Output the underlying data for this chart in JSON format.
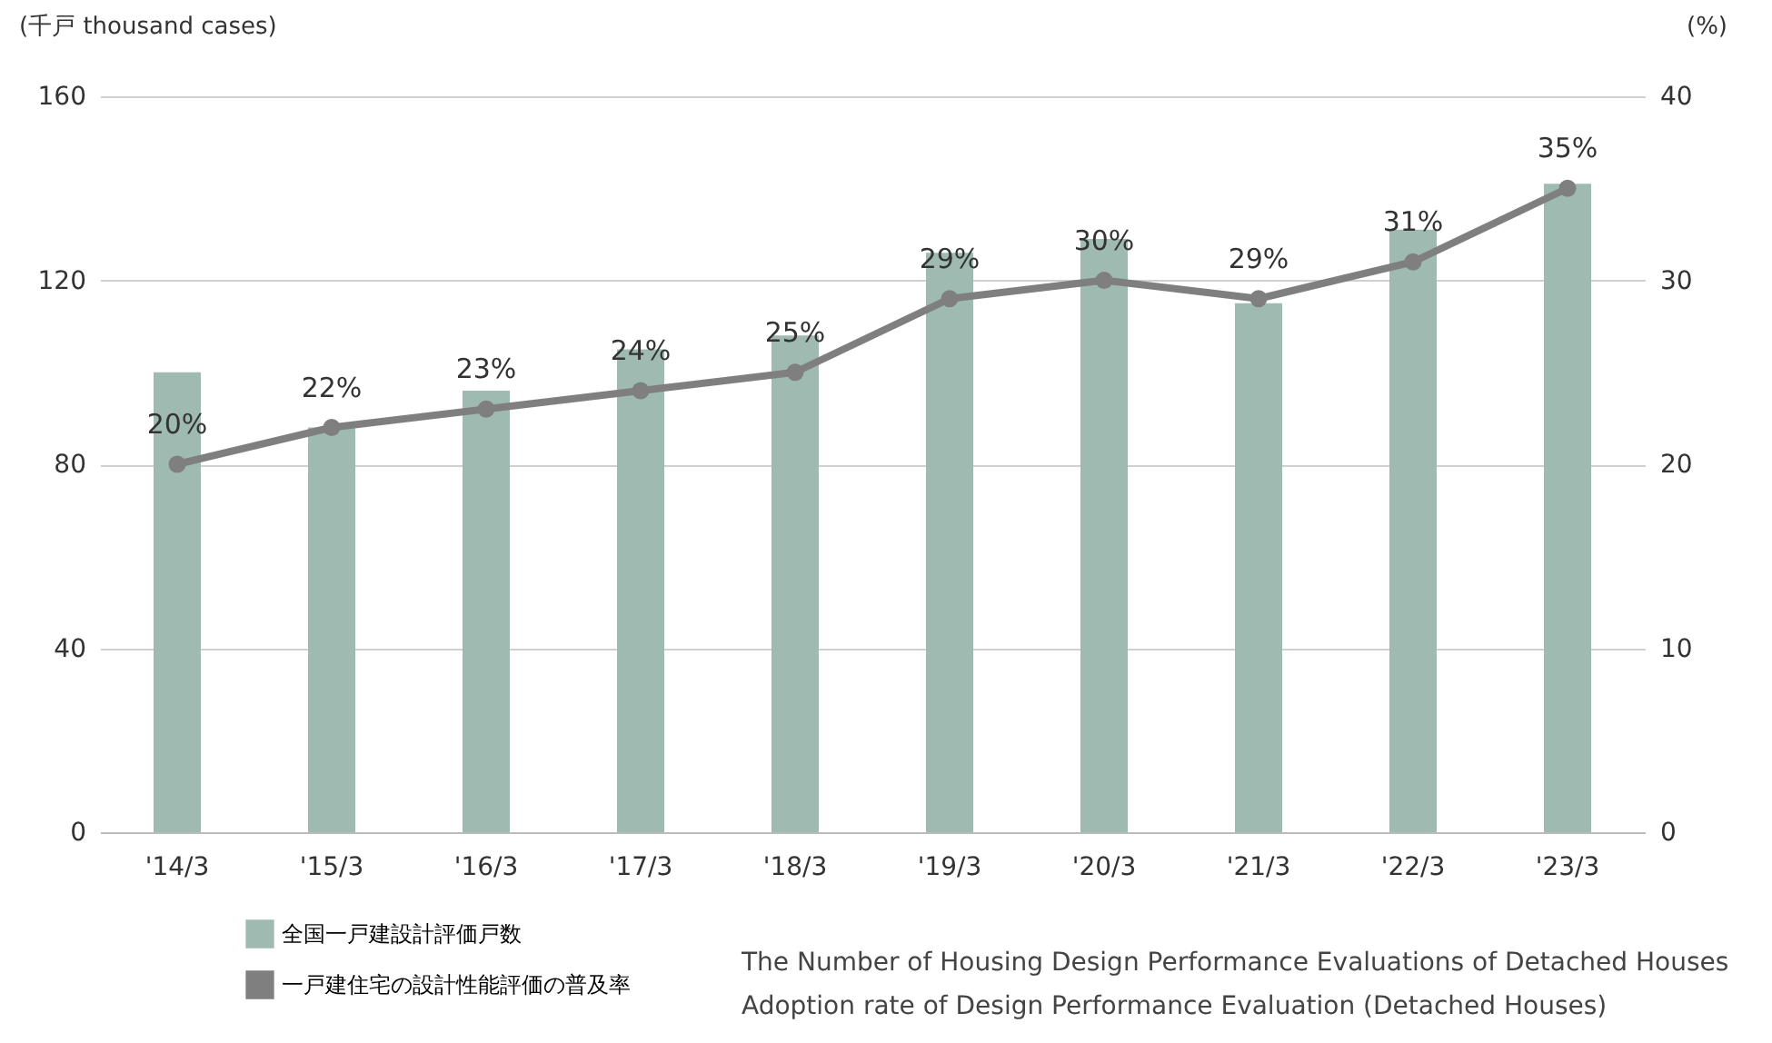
{
  "chart_data": {
    "type": "bar",
    "ylabel": "(千戸 thousand cases)",
    "y2label": "(%)",
    "categories": [
      "'14/3",
      "'15/3",
      "'16/3",
      "'17/3",
      "'18/3",
      "'19/3",
      "'20/3",
      "'21/3",
      "'22/3",
      "'23/3"
    ],
    "series": [
      {
        "name": "全国一戸建設計評価戸数",
        "color": "#9fbab1",
        "values": [
          100,
          88,
          96,
          105,
          108,
          126,
          129,
          115,
          131,
          141
        ]
      },
      {
        "name": "一戸建住宅の設計性能評価の普及率",
        "type": "line",
        "axis": "y2",
        "color": "#7f7f7f",
        "values": [
          20,
          22,
          23,
          24,
          25,
          29,
          30,
          29,
          31,
          35
        ],
        "value_labels": [
          "20%",
          "22%",
          "23%",
          "24%",
          "25%",
          "29%",
          "30%",
          "29%",
          "31%",
          "35%"
        ]
      }
    ],
    "ylim": [
      0,
      160
    ],
    "yticks": [
      0,
      40,
      80,
      120,
      160
    ],
    "y2lim": [
      0,
      40
    ],
    "y2ticks": [
      0,
      10,
      20,
      30,
      40
    ],
    "grid": "y",
    "legend": "bottom left",
    "marker": "circle",
    "line_style": "solid",
    "annotations": [
      "The Number of Housing Design Performance Evaluations of Detached Houses",
      "Adoption rate of Design Performance Evaluation (Detached Houses)"
    ]
  }
}
